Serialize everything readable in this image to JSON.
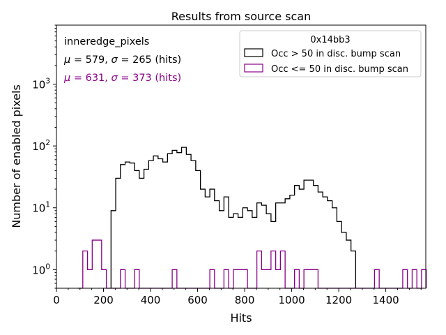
{
  "chart_data": {
    "type": "histogram",
    "title": "Results from source scan",
    "xlabel": "Hits",
    "ylabel": "Number of enabled pixels",
    "xlim": [
      0,
      1570
    ],
    "ylim": [
      0.5,
      9000
    ],
    "yscale": "log",
    "x_ticks": [
      {
        "value": 0,
        "label": "0"
      },
      {
        "value": 200,
        "label": "200"
      },
      {
        "value": 400,
        "label": "400"
      },
      {
        "value": 600,
        "label": "600"
      },
      {
        "value": 800,
        "label": "800"
      },
      {
        "value": 1000,
        "label": "1000"
      },
      {
        "value": 1200,
        "label": "1200"
      },
      {
        "value": 1400,
        "label": "1400"
      }
    ],
    "y_ticks": [
      {
        "value": 1,
        "base": "10",
        "exp": "0"
      },
      {
        "value": 10,
        "base": "10",
        "exp": "1"
      },
      {
        "value": 100,
        "base": "10",
        "exp": "2"
      },
      {
        "value": 1000,
        "base": "10",
        "exp": "3"
      }
    ],
    "legend": {
      "title": "0x14bb3",
      "position": "top-right",
      "entries": [
        {
          "label": "Occ > 50 in disc. bump scan",
          "color": "#000000"
        },
        {
          "label": "Occ <= 50 in disc. bump scan",
          "color": "#8b008b"
        }
      ]
    },
    "annotations": {
      "group": "inneredge_pixels",
      "stats": [
        {
          "mu": "579",
          "sigma": "265",
          "unit": "(hits)",
          "color": "#000000"
        },
        {
          "mu": "631",
          "sigma": "373",
          "unit": "(hits)",
          "color": "#8b008b"
        }
      ]
    },
    "series": [
      {
        "name": "Occ > 50 in disc. bump scan",
        "color": "#000000",
        "bin_edges": [
          232,
          252,
          272,
          292,
          312,
          332,
          352,
          372,
          392,
          412,
          432,
          452,
          472,
          492,
          512,
          532,
          552,
          572,
          592,
          612,
          632,
          652,
          672,
          692,
          712,
          732,
          752,
          772,
          792,
          812,
          832,
          852,
          872,
          892,
          912,
          932,
          952,
          972,
          992,
          1012,
          1032,
          1052,
          1072,
          1092,
          1112,
          1132,
          1152,
          1172,
          1192,
          1212,
          1232,
          1252,
          1272
        ],
        "counts": [
          9,
          30,
          50,
          55,
          53,
          40,
          30,
          42,
          58,
          69,
          62,
          55,
          75,
          85,
          78,
          95,
          73,
          58,
          40,
          20,
          15,
          20,
          13,
          9,
          15,
          7,
          8,
          7,
          10,
          9,
          7,
          12,
          11,
          8,
          6,
          12,
          12,
          14,
          16,
          23,
          20,
          28,
          28,
          23,
          18,
          15,
          13,
          10,
          6,
          4,
          3,
          2
        ]
      },
      {
        "name": "Occ <= 50 in disc. bump scan",
        "color": "#8b008b",
        "bin_edges": [
          92,
          112,
          132,
          152,
          172,
          192,
          212,
          232,
          252,
          272,
          292,
          312,
          332,
          352,
          372,
          392,
          412,
          432,
          452,
          472,
          492,
          512,
          532,
          552,
          572,
          592,
          612,
          632,
          652,
          672,
          692,
          712,
          732,
          752,
          772,
          792,
          812,
          832,
          852,
          872,
          892,
          912,
          932,
          952,
          972,
          992,
          1012,
          1032,
          1052,
          1072,
          1092,
          1112,
          1132,
          1152,
          1172,
          1192,
          1212,
          1232,
          1252,
          1272,
          1292,
          1312,
          1332,
          1352,
          1372,
          1392,
          1412,
          1432,
          1452,
          1472,
          1492,
          1512,
          1532,
          1552,
          1572
        ],
        "counts": [
          0,
          2,
          1,
          3,
          3,
          1,
          0,
          0,
          0,
          1,
          0,
          0,
          1,
          0,
          0,
          0,
          0,
          0,
          0,
          0,
          1,
          0,
          0,
          0,
          0,
          0,
          0,
          0,
          1,
          0,
          0,
          1,
          0,
          1,
          1,
          1,
          0,
          0,
          2,
          1,
          1,
          2,
          1,
          2,
          0,
          0,
          1,
          0,
          1,
          1,
          1,
          0,
          0,
          0,
          0,
          0,
          0,
          0,
          0,
          0,
          0,
          0,
          0,
          1,
          0,
          0,
          0,
          0,
          0,
          1,
          0,
          1,
          0,
          1
        ]
      }
    ]
  }
}
